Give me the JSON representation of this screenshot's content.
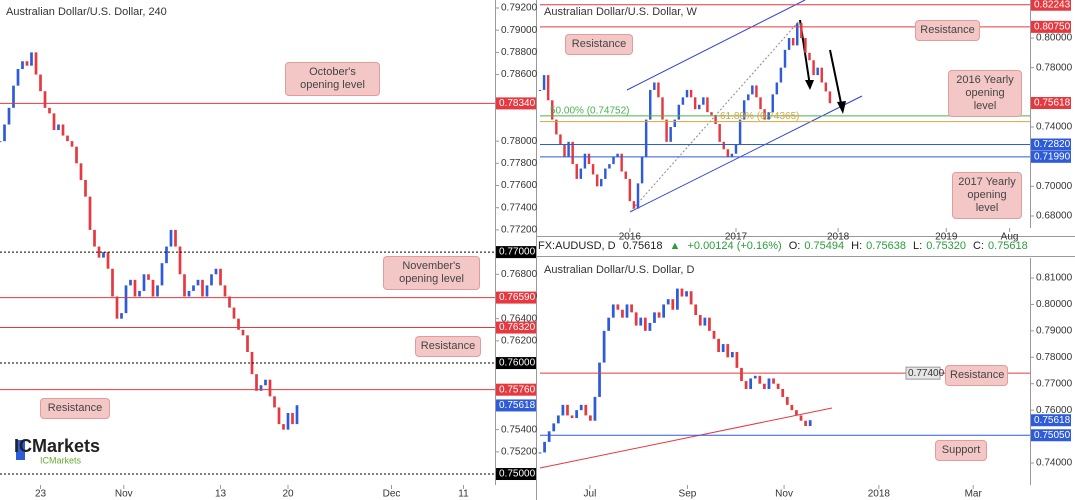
{
  "chart_data": [
    {
      "type": "candlestick",
      "title": "Australian Dollar/U.S. Dollar, 240",
      "values": [
        0.78,
        0.7815,
        0.783,
        0.785,
        0.7865,
        0.7872,
        0.7868,
        0.788,
        0.786,
        0.7845,
        0.783,
        0.7825,
        0.781,
        0.7815,
        0.7805,
        0.78,
        0.7795,
        0.778,
        0.7765,
        0.775,
        0.772,
        0.7705,
        0.7695,
        0.77,
        0.7685,
        0.766,
        0.764,
        0.7645,
        0.767,
        0.7675,
        0.766,
        0.7665,
        0.768,
        0.7675,
        0.766,
        0.767,
        0.769,
        0.7705,
        0.772,
        0.7705,
        0.768,
        0.766,
        0.7665,
        0.767,
        0.7675,
        0.766,
        0.767,
        0.768,
        0.7685,
        0.767,
        0.766,
        0.765,
        0.764,
        0.763,
        0.7625,
        0.761,
        0.759,
        0.7575,
        0.758,
        0.7585,
        0.757,
        0.756,
        0.7545,
        0.754,
        0.7555,
        0.7545,
        0.7562
      ],
      "up_color": "#2e5bd8",
      "down_color": "#e5393f",
      "xlim": [
        0,
        110
      ],
      "xticks": [
        {
          "value": 9,
          "label": "23"
        },
        {
          "value": 27.5,
          "label": "Nov"
        },
        {
          "value": 49,
          "label": "13"
        },
        {
          "value": 64,
          "label": "20"
        },
        {
          "value": 87,
          "label": "Dec"
        },
        {
          "value": 103,
          "label": "11"
        }
      ],
      "ylim": [
        0.74901,
        0.79272
      ],
      "yticks": [
        {
          "value": 0.792,
          "label": "0.79200"
        },
        {
          "value": 0.79,
          "label": "0.79000"
        },
        {
          "value": 0.788,
          "label": "0.78800"
        },
        {
          "value": 0.786,
          "label": "0.78600"
        },
        {
          "value": 0.78,
          "label": "0.78000"
        },
        {
          "value": 0.778,
          "label": "0.77800"
        },
        {
          "value": 0.776,
          "label": "0.77600"
        },
        {
          "value": 0.774,
          "label": "0.77400"
        },
        {
          "value": 0.772,
          "label": "0.77200"
        },
        {
          "value": 0.768,
          "label": "0.76800"
        },
        {
          "value": 0.766,
          "label": "0.76600"
        },
        {
          "value": 0.764,
          "label": "0.76400"
        },
        {
          "value": 0.762,
          "label": "0.76200"
        },
        {
          "value": 0.754,
          "label": "0.75400"
        },
        {
          "value": 0.752,
          "label": "0.75200"
        }
      ],
      "levels": [
        {
          "value": 0.7834,
          "label": "0.78340",
          "color": "#e5393f",
          "style": "solid",
          "line": true
        },
        {
          "value": 0.77,
          "label": "0.77000",
          "color": "#000000",
          "style": "dotted",
          "line": true
        },
        {
          "value": 0.7659,
          "label": "0.76590",
          "color": "#e5393f",
          "style": "solid",
          "line": true
        },
        {
          "value": 0.7632,
          "label": "0.76320",
          "color": "#e5393f",
          "style": "solid",
          "line": true
        },
        {
          "value": 0.76,
          "label": "0.76000",
          "color": "#000000",
          "style": "dotted",
          "line": true
        },
        {
          "value": 0.7576,
          "label": "0.75760",
          "color": "#e5393f",
          "style": "solid",
          "line": true
        },
        {
          "value": 0.75618,
          "label": "0.75618",
          "color": "#2e5bd8",
          "style": "solid",
          "line": false
        },
        {
          "value": 0.75,
          "label": "0.75000",
          "color": "#000000",
          "style": "dotted",
          "line": true
        }
      ],
      "annotations": [
        "October's opening level",
        "November's opening level",
        "Resistance",
        "Resistance"
      ]
    },
    {
      "type": "candlestick",
      "title": "Australian Dollar/U.S. Dollar, W",
      "values": [
        0.765,
        0.775,
        0.758,
        0.745,
        0.735,
        0.728,
        0.72,
        0.73,
        0.715,
        0.705,
        0.712,
        0.722,
        0.715,
        0.708,
        0.7,
        0.705,
        0.712,
        0.715,
        0.72,
        0.722,
        0.71,
        0.705,
        0.69,
        0.685,
        0.702,
        0.72,
        0.745,
        0.765,
        0.77,
        0.76,
        0.745,
        0.73,
        0.74,
        0.745,
        0.755,
        0.76,
        0.765,
        0.76,
        0.752,
        0.755,
        0.76,
        0.75,
        0.748,
        0.742,
        0.73,
        0.725,
        0.72,
        0.722,
        0.728,
        0.745,
        0.758,
        0.762,
        0.768,
        0.76,
        0.752,
        0.745,
        0.75,
        0.762,
        0.77,
        0.78,
        0.792,
        0.8,
        0.795,
        0.81,
        0.8,
        0.79,
        0.785,
        0.775,
        0.78,
        0.77,
        0.764,
        0.756
      ],
      "up_color": "#2e5bd8",
      "down_color": "#e5393f",
      "xlim": [
        0,
        120
      ],
      "xticks": [
        {
          "value": 22,
          "label": "2016"
        },
        {
          "value": 48,
          "label": "2017"
        },
        {
          "value": 73,
          "label": "2018"
        },
        {
          "value": 99.5,
          "label": "2019"
        },
        {
          "value": 115,
          "label": "Aug"
        }
      ],
      "ylim": [
        0.67191,
        0.82562
      ],
      "yticks": [
        {
          "value": 0.8,
          "label": "0.80000"
        },
        {
          "value": 0.78,
          "label": "0.78000"
        },
        {
          "value": 0.74,
          "label": "0.74000"
        },
        {
          "value": 0.7,
          "label": "0.70000"
        },
        {
          "value": 0.68,
          "label": "0.68000"
        }
      ],
      "levels": [
        {
          "value": 0.82243,
          "label": "0.82243",
          "color": "#e5393f",
          "style": "solid",
          "line": true
        },
        {
          "value": 0.8075,
          "label": "0.80750",
          "color": "#e5393f",
          "style": "solid",
          "line": true
        },
        {
          "value": 0.75618,
          "label": "0.75618",
          "color": "#e5393f",
          "style": "solid",
          "line": false
        },
        {
          "value": 0.7282,
          "label": "0.72820",
          "color": "#2e5bd8",
          "style": "solid",
          "line": true
        },
        {
          "value": 0.7199,
          "label": "0.71990",
          "color": "#2e5bd8",
          "style": "solid",
          "line": true
        }
      ],
      "fib_levels": [
        {
          "value": 0.74752,
          "label": "50.00% (0.74752)",
          "color": "#4caf50"
        },
        {
          "value": 0.74365,
          "label": "61.80% (0.74365)",
          "color": "#d9a441"
        }
      ],
      "annotations": [
        "Resistance",
        "Resistance",
        "2016 Yearly opening level",
        "2017 Yearly opening level"
      ]
    },
    {
      "type": "candlestick",
      "title": "Australian Dollar/U.S. Dollar, D",
      "values": [
        0.744,
        0.748,
        0.752,
        0.755,
        0.758,
        0.762,
        0.758,
        0.757,
        0.76,
        0.762,
        0.758,
        0.756,
        0.765,
        0.778,
        0.79,
        0.795,
        0.8,
        0.798,
        0.795,
        0.8,
        0.797,
        0.792,
        0.795,
        0.79,
        0.793,
        0.797,
        0.795,
        0.8,
        0.802,
        0.798,
        0.806,
        0.803,
        0.805,
        0.8,
        0.796,
        0.792,
        0.795,
        0.79,
        0.787,
        0.782,
        0.785,
        0.78,
        0.782,
        0.776,
        0.771,
        0.768,
        0.772,
        0.773,
        0.77,
        0.768,
        0.772,
        0.77,
        0.768,
        0.765,
        0.762,
        0.76,
        0.758,
        0.756,
        0.754,
        0.7562
      ],
      "up_color": "#2e5bd8",
      "down_color": "#e5393f",
      "xlim": [
        0,
        107
      ],
      "xticks": [
        {
          "value": 10.9,
          "label": "Jul"
        },
        {
          "value": 32.2,
          "label": "Sep"
        },
        {
          "value": 53.3,
          "label": "Nov"
        },
        {
          "value": 74,
          "label": "2018"
        },
        {
          "value": 94.6,
          "label": "Mar"
        }
      ],
      "ylim": [
        0.73168,
        0.81757
      ],
      "yticks": [
        {
          "value": 0.81,
          "label": "0.81000"
        },
        {
          "value": 0.8,
          "label": "0.80000"
        },
        {
          "value": 0.79,
          "label": "0.79000"
        },
        {
          "value": 0.78,
          "label": "0.78000"
        },
        {
          "value": 0.77,
          "label": "0.77000"
        },
        {
          "value": 0.76,
          "label": "0.76000"
        },
        {
          "value": 0.74,
          "label": "0.74000"
        }
      ],
      "levels": [
        {
          "value": 0.774,
          "label": "0.77400",
          "color": "#e5393f",
          "style": "solid",
          "line": true,
          "inline": true
        },
        {
          "value": 0.75618,
          "label": "0.75618",
          "color": "#2e5bd8",
          "style": "solid",
          "line": false
        },
        {
          "value": 0.7505,
          "label": "0.75050",
          "color": "#2e5bd8",
          "style": "solid",
          "line": true
        }
      ],
      "annotations": [
        "Resistance",
        "Support"
      ]
    }
  ],
  "info_bar": {
    "symbol": "FX:AUDUSD, D",
    "price": "0.75618",
    "change": "+0.00124 (+0.16%)",
    "fields": [
      [
        "O:",
        "0.75494"
      ],
      [
        "H:",
        "0.75638"
      ],
      [
        "L:",
        "0.75320"
      ],
      [
        "C:",
        "0.75618"
      ]
    ]
  },
  "logo": {
    "brand": "ICMarkets",
    "tagline": "ICMarkets"
  }
}
